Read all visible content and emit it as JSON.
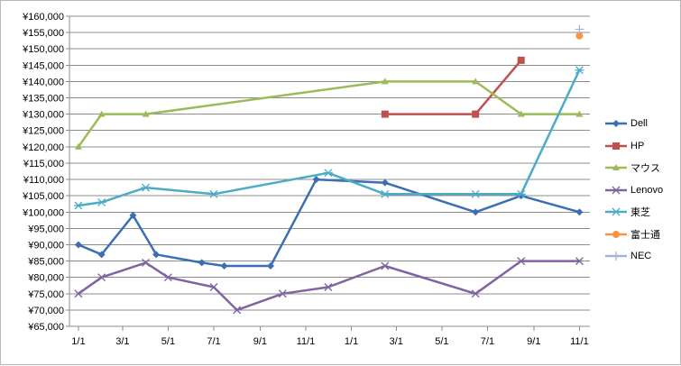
{
  "chart_data": {
    "type": "line",
    "title": "",
    "xlabel": "",
    "ylabel": "",
    "x_dates": [
      "2011-01-01",
      "2011-02-01",
      "2011-04-01",
      "2011-05-01",
      "2011-07-01",
      "2011-08-01",
      "2011-10-01",
      "2011-12-01",
      "2012-02-01",
      "2012-06-01",
      "2012-08-01",
      "2012-11-01"
    ],
    "x_tick_labels": [
      "1/1",
      "3/1",
      "5/1",
      "7/1",
      "9/1",
      "11/1",
      "1/1",
      "3/1",
      "5/1",
      "7/1",
      "9/1",
      "11/1"
    ],
    "x_tick_dates": [
      "2011-01-01",
      "2011-03-01",
      "2011-05-01",
      "2011-07-01",
      "2011-09-01",
      "2011-11-01",
      "2012-01-01",
      "2012-03-01",
      "2012-05-01",
      "2012-07-01",
      "2012-09-01",
      "2012-11-01"
    ],
    "x_range": [
      "2010-12-20",
      "2012-11-15"
    ],
    "ylim": [
      65000,
      160000
    ],
    "y_step": 5000,
    "y_tick_labels": [
      "¥65,000",
      "¥70,000",
      "¥75,000",
      "¥80,000",
      "¥85,000",
      "¥90,000",
      "¥95,000",
      "¥100,000",
      "¥105,000",
      "¥110,000",
      "¥115,000",
      "¥120,000",
      "¥125,000",
      "¥130,000",
      "¥135,000",
      "¥140,000",
      "¥145,000",
      "¥150,000",
      "¥155,000",
      "¥160,000"
    ],
    "grid": true,
    "legend_position": "right",
    "series": [
      {
        "name": "Dell",
        "color": "#3c6eb4",
        "marker": "diamond",
        "points": [
          [
            "2011-01-01",
            90000
          ],
          [
            "2011-02-01",
            87000
          ],
          [
            "2011-03-15",
            99000
          ],
          [
            "2011-04-15",
            87000
          ],
          [
            "2011-06-15",
            84500
          ],
          [
            "2011-07-15",
            83500
          ],
          [
            "2011-09-15",
            83500
          ],
          [
            "2011-11-15",
            110000
          ],
          [
            "2012-02-15",
            109000
          ],
          [
            "2012-06-15",
            100000
          ],
          [
            "2012-08-15",
            105000
          ],
          [
            "2012-11-01",
            100000
          ]
        ]
      },
      {
        "name": "HP",
        "color": "#c0504d",
        "marker": "square",
        "points": [
          [
            "2012-02-15",
            130000
          ],
          [
            "2012-06-15",
            130000
          ],
          [
            "2012-08-15",
            146500
          ]
        ]
      },
      {
        "name": "マウス",
        "color": "#9bbb59",
        "marker": "triangle",
        "points": [
          [
            "2011-01-01",
            120000
          ],
          [
            "2011-02-01",
            130000
          ],
          [
            "2011-04-01",
            130000
          ],
          [
            "2012-02-15",
            140000
          ],
          [
            "2012-06-15",
            140000
          ],
          [
            "2012-08-15",
            130000
          ],
          [
            "2012-11-01",
            130000
          ]
        ]
      },
      {
        "name": "Lenovo",
        "color": "#8064a2",
        "marker": "x",
        "points": [
          [
            "2011-01-01",
            75000
          ],
          [
            "2011-02-01",
            80000
          ],
          [
            "2011-04-01",
            84500
          ],
          [
            "2011-05-01",
            80000
          ],
          [
            "2011-07-01",
            77000
          ],
          [
            "2011-08-01",
            70000
          ],
          [
            "2011-10-01",
            75000
          ],
          [
            "2011-12-01",
            77000
          ],
          [
            "2012-02-15",
            83500
          ],
          [
            "2012-06-15",
            75000
          ],
          [
            "2012-08-15",
            85000
          ],
          [
            "2012-11-01",
            85000
          ]
        ]
      },
      {
        "name": "東芝",
        "color": "#4bacc6",
        "marker": "asterisk",
        "points": [
          [
            "2011-01-01",
            102000
          ],
          [
            "2011-02-01",
            103000
          ],
          [
            "2011-04-01",
            107500
          ],
          [
            "2011-07-01",
            105500
          ],
          [
            "2011-12-01",
            112000
          ],
          [
            "2012-02-15",
            105500
          ],
          [
            "2012-06-15",
            105500
          ],
          [
            "2012-08-15",
            105500
          ],
          [
            "2012-11-01",
            143500
          ]
        ]
      },
      {
        "name": "富士通",
        "color": "#f79646",
        "marker": "circle",
        "points": [
          [
            "2012-11-01",
            154000
          ]
        ]
      },
      {
        "name": "NEC",
        "color": "#9fb6d9",
        "marker": "plus",
        "points": [
          [
            "2012-11-01",
            156000
          ]
        ]
      }
    ]
  }
}
